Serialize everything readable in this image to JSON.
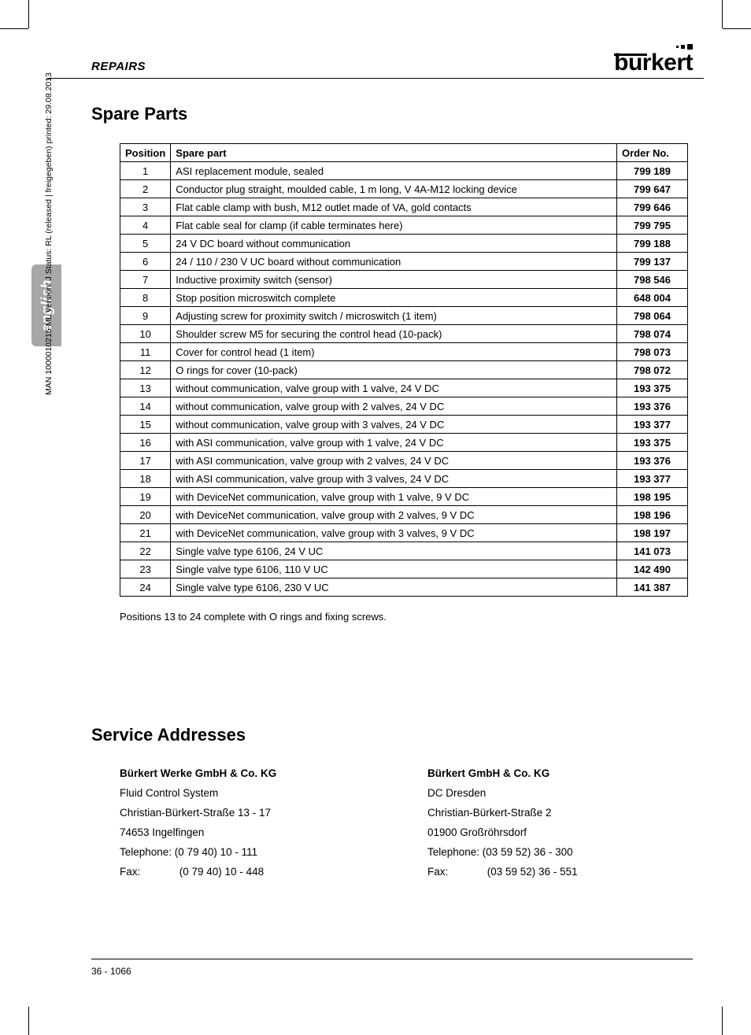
{
  "header": {
    "section": "REPAIRS",
    "brand": "burkert"
  },
  "lang_tab": "english",
  "side_meta": "MAN  1000010215  ML  Version: J  Status: RL (released | freigegeben)  printed: 29.08.2013",
  "titles": {
    "spare_parts": "Spare Parts",
    "service_addresses": "Service Addresses"
  },
  "table": {
    "columns": {
      "position": "Position",
      "spare_part": "Spare part",
      "order_no": "Order No."
    },
    "rows": [
      {
        "pos": "1",
        "part": "ASI replacement module, sealed",
        "ord": "799 189"
      },
      {
        "pos": "2",
        "part": "Conductor plug straight, moulded cable, 1 m long, V 4A-M12 locking device",
        "ord": "799 647"
      },
      {
        "pos": "3",
        "part": "Flat cable clamp with bush, M12 outlet made of VA, gold contacts",
        "ord": "799 646"
      },
      {
        "pos": "4",
        "part": "Flat cable seal for clamp (if cable terminates here)",
        "ord": "799 795"
      },
      {
        "pos": "5",
        "part": "24 V DC board without communication",
        "ord": "799 188"
      },
      {
        "pos": "6",
        "part": "24 / 110 / 230 V UC board without communication",
        "ord": "799 137"
      },
      {
        "pos": "7",
        "part": "Inductive proximity switch (sensor)",
        "ord": "798 546"
      },
      {
        "pos": "8",
        "part": "Stop position microswitch complete",
        "ord": "648 004"
      },
      {
        "pos": "9",
        "part": "Adjusting screw for proximity switch / microswitch (1 item)",
        "ord": "798 064"
      },
      {
        "pos": "10",
        "part": "Shoulder screw M5 for securing the control head (10-pack)",
        "ord": "798 074"
      },
      {
        "pos": "11",
        "part": "Cover for control head (1 item)",
        "ord": "798 073"
      },
      {
        "pos": "12",
        "part": "O rings for cover (10-pack)",
        "ord": "798 072"
      },
      {
        "pos": "13",
        "part": "without communication, valve group with 1 valve, 24 V DC",
        "ord": "193 375"
      },
      {
        "pos": "14",
        "part": "without communication, valve group with 2 valves, 24 V DC",
        "ord": "193 376"
      },
      {
        "pos": "15",
        "part": "without communication, valve group with 3 valves, 24 V DC",
        "ord": "193 377"
      },
      {
        "pos": "16",
        "part": "with ASI communication, valve group with 1 valve, 24 V DC",
        "ord": "193 375"
      },
      {
        "pos": "17",
        "part": "with ASI communication, valve group with 2 valves, 24 V DC",
        "ord": "193 376"
      },
      {
        "pos": "18",
        "part": "with ASI communication, valve group with 3 valves, 24 V DC",
        "ord": "193 377"
      },
      {
        "pos": "19",
        "part": "with DeviceNet communication, valve group with 1 valve, 9 V DC",
        "ord": "198 195"
      },
      {
        "pos": "20",
        "part": "with DeviceNet communication, valve group with 2 valves, 9 V DC",
        "ord": "198 196"
      },
      {
        "pos": "21",
        "part": "with DeviceNet communication, valve group with 3 valves, 9 V DC",
        "ord": "198 197"
      },
      {
        "pos": "22",
        "part": "Single valve type 6106,  24 V UC",
        "ord": "141 073"
      },
      {
        "pos": "23",
        "part": "Single valve type 6106,  110 V UC",
        "ord": "142 490"
      },
      {
        "pos": "24",
        "part": "Single valve type 6106,  230 V UC",
        "ord": "141 387"
      }
    ]
  },
  "note": "Positions 13 to 24 complete with O rings and fixing screws.",
  "addresses": {
    "left": {
      "company": "Bürkert Werke GmbH & Co. KG",
      "l1": "Fluid Control System",
      "l2": "Christian-Bürkert-Straße 13 - 17",
      "l3": "74653 Ingelfingen",
      "l4": "Telephone: (0 79 40) 10 - 111",
      "fax_label": "Fax:",
      "fax_value": "(0 79 40) 10 - 448"
    },
    "right": {
      "company": "Bürkert GmbH & Co. KG",
      "l1": "DC Dresden",
      "l2": "Christian-Bürkert-Straße 2",
      "l3": "01900 Großröhrsdorf",
      "l4": "Telephone: (03 59 52) 36 - 300",
      "fax_label": "Fax:",
      "fax_value": "(03 59 52) 36 - 551"
    }
  },
  "footer": {
    "page": "36  -  1066"
  }
}
